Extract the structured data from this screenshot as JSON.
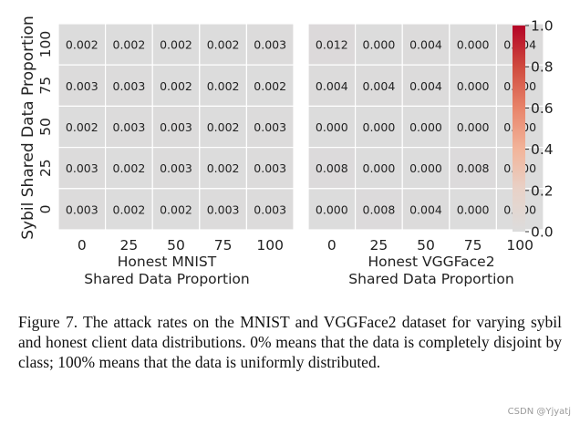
{
  "chart_data": {
    "type": "heatmap",
    "ylabel": "Sybil Shared Data Proportion",
    "yticks": [
      "100",
      "75",
      "50",
      "25",
      "0"
    ],
    "xticks": [
      "0",
      "25",
      "50",
      "75",
      "100"
    ],
    "panels": [
      {
        "xlabel": "Honest MNIST\nShared Data Proportion",
        "values": [
          [
            "0.002",
            "0.002",
            "0.002",
            "0.002",
            "0.003"
          ],
          [
            "0.003",
            "0.003",
            "0.002",
            "0.002",
            "0.002"
          ],
          [
            "0.002",
            "0.003",
            "0.003",
            "0.002",
            "0.003"
          ],
          [
            "0.003",
            "0.002",
            "0.003",
            "0.002",
            "0.003"
          ],
          [
            "0.003",
            "0.002",
            "0.002",
            "0.003",
            "0.003"
          ]
        ]
      },
      {
        "xlabel": "Honest VGGFace2\nShared Data Proportion",
        "values": [
          [
            "0.012",
            "0.000",
            "0.004",
            "0.000",
            "0.004"
          ],
          [
            "0.004",
            "0.004",
            "0.004",
            "0.000",
            "0.000"
          ],
          [
            "0.000",
            "0.000",
            "0.000",
            "0.000",
            "0.000"
          ],
          [
            "0.008",
            "0.000",
            "0.000",
            "0.008",
            "0.000"
          ],
          [
            "0.000",
            "0.008",
            "0.004",
            "0.000",
            "0.000"
          ]
        ]
      }
    ],
    "colorbar": {
      "ticks": [
        "0.0",
        "0.2",
        "0.4",
        "0.6",
        "0.8",
        "1.0"
      ],
      "range": [
        0,
        1
      ],
      "colormap": "coolwarm-diverging",
      "low_color": "#dcdcdc",
      "high_color": "#b40426"
    }
  },
  "caption": "Figure 7. The attack rates on the MNIST and VGGFace2 dataset for varying sybil and honest client data distributions. 0% means that the data is completely disjoint by class; 100% means that the data is uniformly distributed.",
  "watermark": "CSDN @Yjyatj"
}
